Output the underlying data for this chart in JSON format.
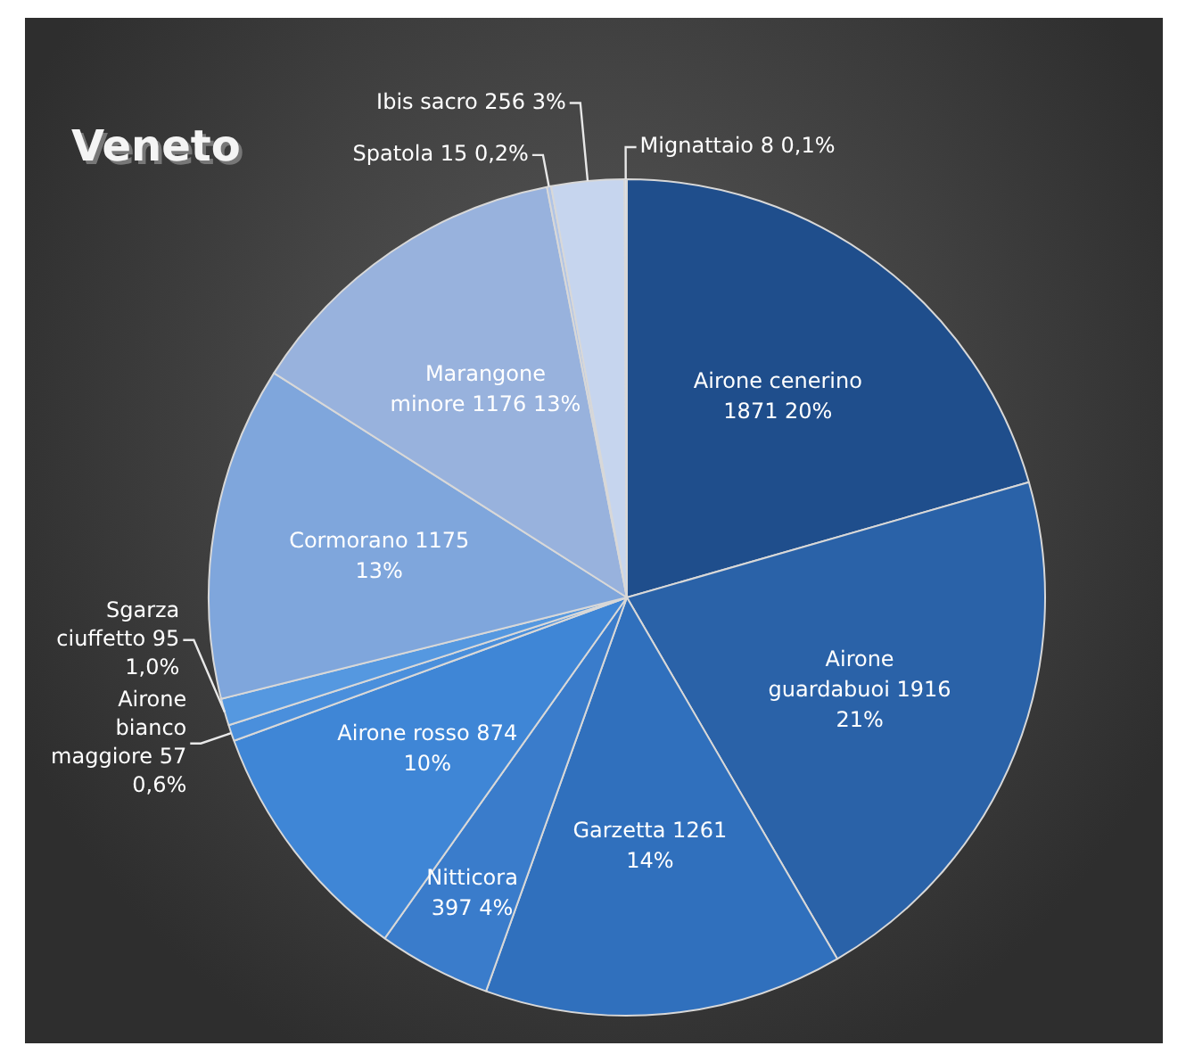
{
  "chart_data": {
    "type": "pie",
    "title": "Veneto",
    "categories": [
      "Airone cenerino",
      "Airone guardabuoi",
      "Garzetta",
      "Nitticora",
      "Airone rosso",
      "Airone bianco maggiore",
      "Sgarza ciuffetto",
      "Cormorano",
      "Marangone minore",
      "Spatola",
      "Ibis sacro",
      "Mignattaio"
    ],
    "values": [
      1871,
      1916,
      1261,
      397,
      874,
      57,
      95,
      1175,
      1176,
      15,
      256,
      8
    ],
    "value_labels": [
      "1871 20%",
      "1916 21%",
      "1261 14%",
      "397 4%",
      "874 10%",
      "57 0,6%",
      "95 1,0%",
      "1175 13%",
      "1176 13%",
      "15 0,2%",
      "256 3%",
      "8 0,1%"
    ],
    "colors": [
      "#1f4e8c",
      "#2a62a8",
      "#3070bd",
      "#3a7ccb",
      "#3f86d6",
      "#4a8fdc",
      "#5598e0",
      "#7fa6dc",
      "#98b2dd",
      "#b0c4e6",
      "#c6d5ee",
      "#dde6f5"
    ],
    "legend": false
  }
}
